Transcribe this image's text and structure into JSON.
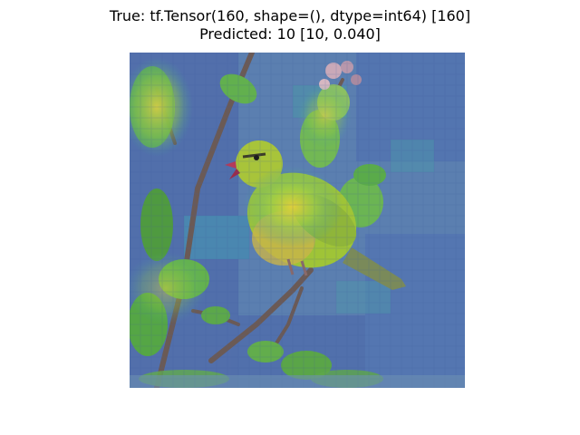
{
  "figure": {
    "title_line_1": "True: tf.Tensor(160, shape=(), dtype=int64) [160]",
    "title_line_2": "Predicted: 10 [10, 0.040]"
  },
  "image": {
    "subject": "bird-on-branch",
    "overlay": "saliency-heatmap",
    "colors": {
      "background_sky": "#5b7fb0",
      "heatmap_low": "#4a62a8",
      "heatmap_mid": "#3fa3a0",
      "heatmap_high": "#e8d13a",
      "bird_body": "#9fc437",
      "bird_belly": "#c9b44a",
      "leaf_green": "#5fb04a",
      "branch": "#6b5a55"
    }
  }
}
